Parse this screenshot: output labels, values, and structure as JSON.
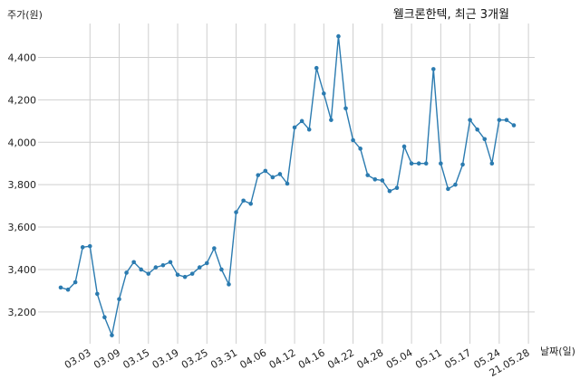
{
  "chart_data": {
    "type": "line",
    "title": "웰크론한텍, 최근 3개월",
    "ylabel": "주가(원)",
    "xlabel": "날짜(일)",
    "ylim": [
      3050,
      4560
    ],
    "yticks": [
      3200,
      3400,
      3600,
      3800,
      4000,
      4200,
      4400
    ],
    "ytick_labels": [
      "3,200",
      "3,400",
      "3,600",
      "3,800",
      "4,000",
      "4,200",
      "4,400"
    ],
    "grid": true,
    "color": "#2b7bb0",
    "xtick_labels": [
      {
        "label": "03.03",
        "index": 4
      },
      {
        "label": "03.09",
        "index": 8
      },
      {
        "label": "03.15",
        "index": 12
      },
      {
        "label": "03.19",
        "index": 16
      },
      {
        "label": "03.25",
        "index": 20
      },
      {
        "label": "03.31",
        "index": 24
      },
      {
        "label": "04.06",
        "index": 28
      },
      {
        "label": "04.12",
        "index": 32
      },
      {
        "label": "04.16",
        "index": 36
      },
      {
        "label": "04.22",
        "index": 40
      },
      {
        "label": "04.28",
        "index": 44
      },
      {
        "label": "05.04",
        "index": 48
      },
      {
        "label": "05.11",
        "index": 52
      },
      {
        "label": "05.17",
        "index": 56
      },
      {
        "label": "05.24",
        "index": 60
      },
      {
        "label": "21.05.28",
        "index": 64
      }
    ],
    "series": [
      {
        "values": [
          3315,
          3305,
          3340,
          3505,
          3510,
          3285,
          3175,
          3090,
          3260,
          3385,
          3435,
          3400,
          3380,
          3410,
          3420,
          3435,
          3375,
          3365,
          3380,
          3410,
          3430,
          3500,
          3400,
          3330,
          3670,
          3725,
          3710,
          3845,
          3865,
          3835,
          3850,
          3805,
          4070,
          4100,
          4060,
          4350,
          4230,
          4105,
          4500,
          4160,
          4010,
          3970,
          3845,
          3825,
          3820,
          3770,
          3785,
          3980,
          3900,
          3900,
          3900,
          4345,
          3900,
          3780,
          3800,
          3895,
          4105,
          4060,
          4015,
          3900,
          4105,
          4105,
          4080
        ]
      }
    ]
  }
}
